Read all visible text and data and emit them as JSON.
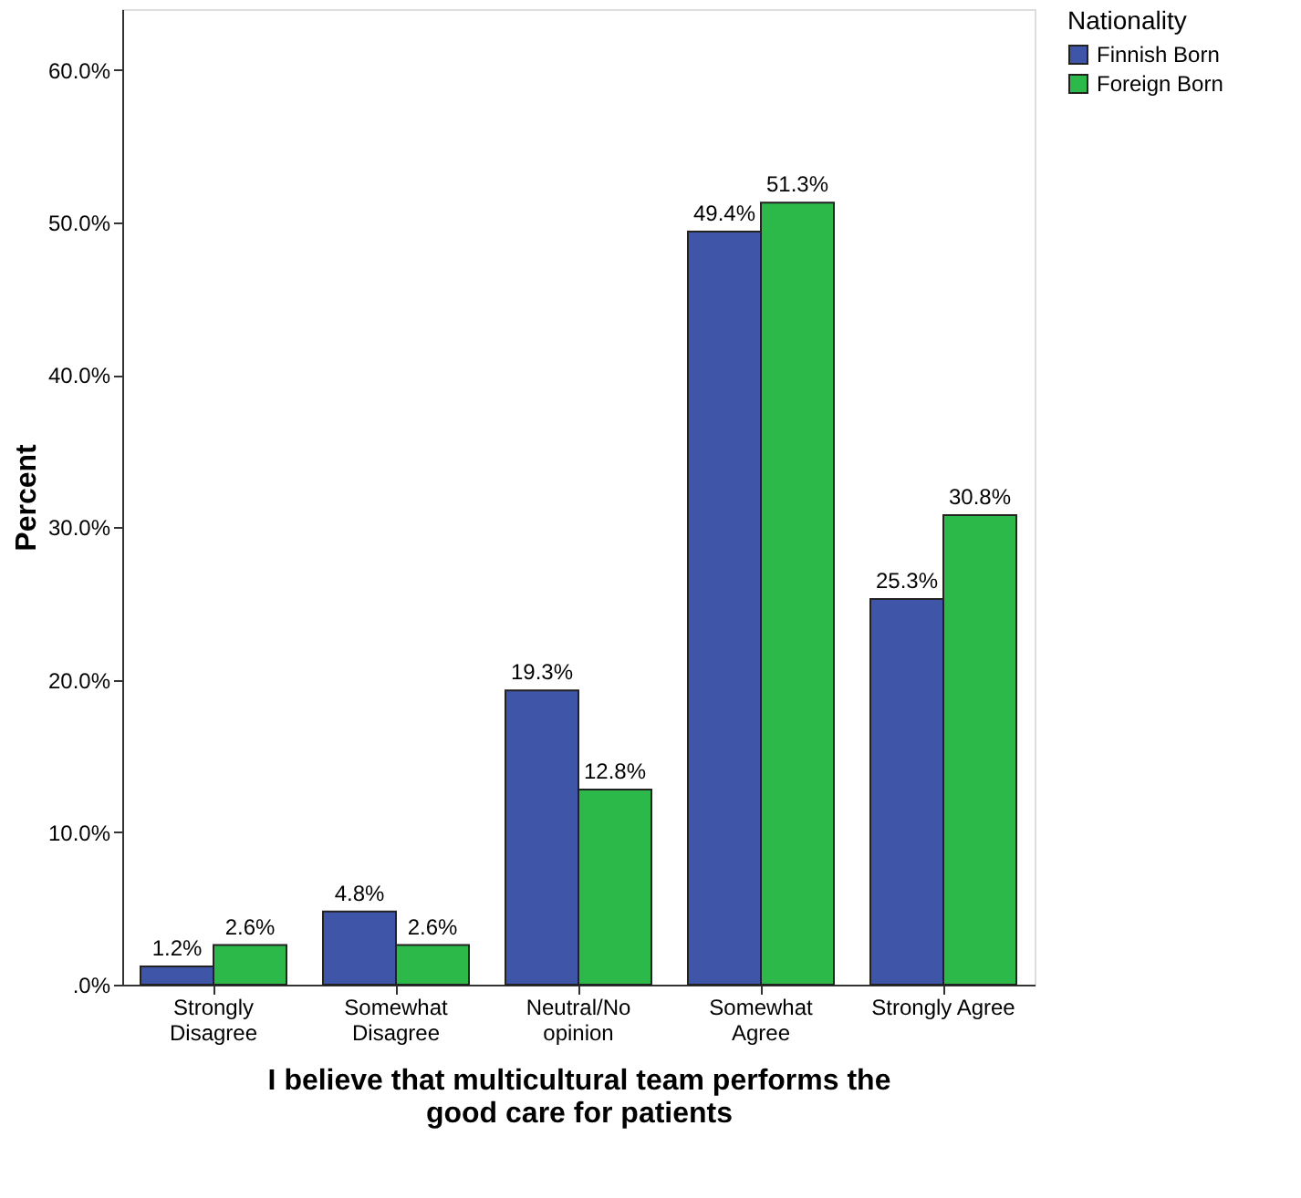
{
  "chart_data": {
    "type": "bar",
    "categories": [
      "Strongly\nDisagree",
      "Somewhat\nDisagree",
      "Neutral/No\nopinion",
      "Somewhat\nAgree",
      "Strongly Agree"
    ],
    "series": [
      {
        "name": "Finnish Born",
        "color": "#3f55a8",
        "values": [
          1.2,
          4.8,
          19.3,
          49.4,
          25.3
        ],
        "value_labels": [
          "1.2%",
          "4.8%",
          "19.3%",
          "49.4%",
          "25.3%"
        ]
      },
      {
        "name": "Foreign Born",
        "color": "#2db84a",
        "values": [
          2.6,
          2.6,
          12.8,
          51.3,
          30.8
        ],
        "value_labels": [
          "2.6%",
          "2.6%",
          "12.8%",
          "51.3%",
          "30.8%"
        ]
      }
    ],
    "xlabel": "I believe that multicultural team performs the\ngood care for patients",
    "ylabel": "Percent",
    "legend_title": "Nationality",
    "legend": "top right",
    "ylim": [
      0,
      64
    ],
    "yticks": [
      {
        "value": 0,
        "label": ".0%"
      },
      {
        "value": 10,
        "label": "10.0%"
      },
      {
        "value": 20,
        "label": "20.0%"
      },
      {
        "value": 30,
        "label": "30.0%"
      },
      {
        "value": 40,
        "label": "40.0%"
      },
      {
        "value": 50,
        "label": "50.0%"
      },
      {
        "value": 60,
        "label": "60.0%"
      }
    ],
    "grid": false
  }
}
